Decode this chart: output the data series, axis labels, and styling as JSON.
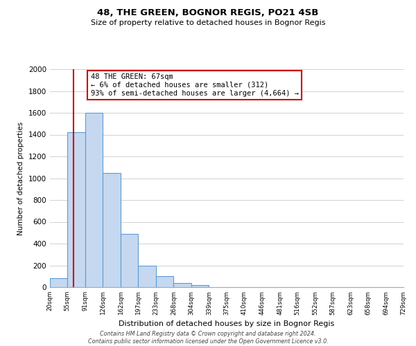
{
  "title": "48, THE GREEN, BOGNOR REGIS, PO21 4SB",
  "subtitle": "Size of property relative to detached houses in Bognor Regis",
  "xlabel": "Distribution of detached houses by size in Bognor Regis",
  "ylabel": "Number of detached properties",
  "bin_edges": [
    20,
    55,
    91,
    126,
    162,
    197,
    233,
    268,
    304,
    339,
    375,
    410,
    446,
    481,
    516,
    552,
    587,
    623,
    658,
    694,
    729
  ],
  "bar_heights": [
    80,
    1420,
    1600,
    1050,
    490,
    200,
    100,
    35,
    20,
    0,
    0,
    0,
    0,
    0,
    0,
    0,
    0,
    0,
    0,
    0
  ],
  "bar_color": "#c5d8f0",
  "bar_edge_color": "#5b9bd5",
  "ylim": [
    0,
    2000
  ],
  "yticks": [
    0,
    200,
    400,
    600,
    800,
    1000,
    1200,
    1400,
    1600,
    1800,
    2000
  ],
  "property_value": 67,
  "vline_color": "#cc0000",
  "annotation_title": "48 THE GREEN: 67sqm",
  "annotation_line1": "← 6% of detached houses are smaller (312)",
  "annotation_line2": "93% of semi-detached houses are larger (4,664) →",
  "annotation_box_color": "#ffffff",
  "annotation_box_edge": "#cc0000",
  "footer_line1": "Contains HM Land Registry data © Crown copyright and database right 2024.",
  "footer_line2": "Contains public sector information licensed under the Open Government Licence v3.0.",
  "background_color": "#ffffff",
  "grid_color": "#d0d0d0",
  "tick_labels": [
    "20sqm",
    "55sqm",
    "91sqm",
    "126sqm",
    "162sqm",
    "197sqm",
    "233sqm",
    "268sqm",
    "304sqm",
    "339sqm",
    "375sqm",
    "410sqm",
    "446sqm",
    "481sqm",
    "516sqm",
    "552sqm",
    "587sqm",
    "623sqm",
    "658sqm",
    "694sqm",
    "729sqm"
  ]
}
